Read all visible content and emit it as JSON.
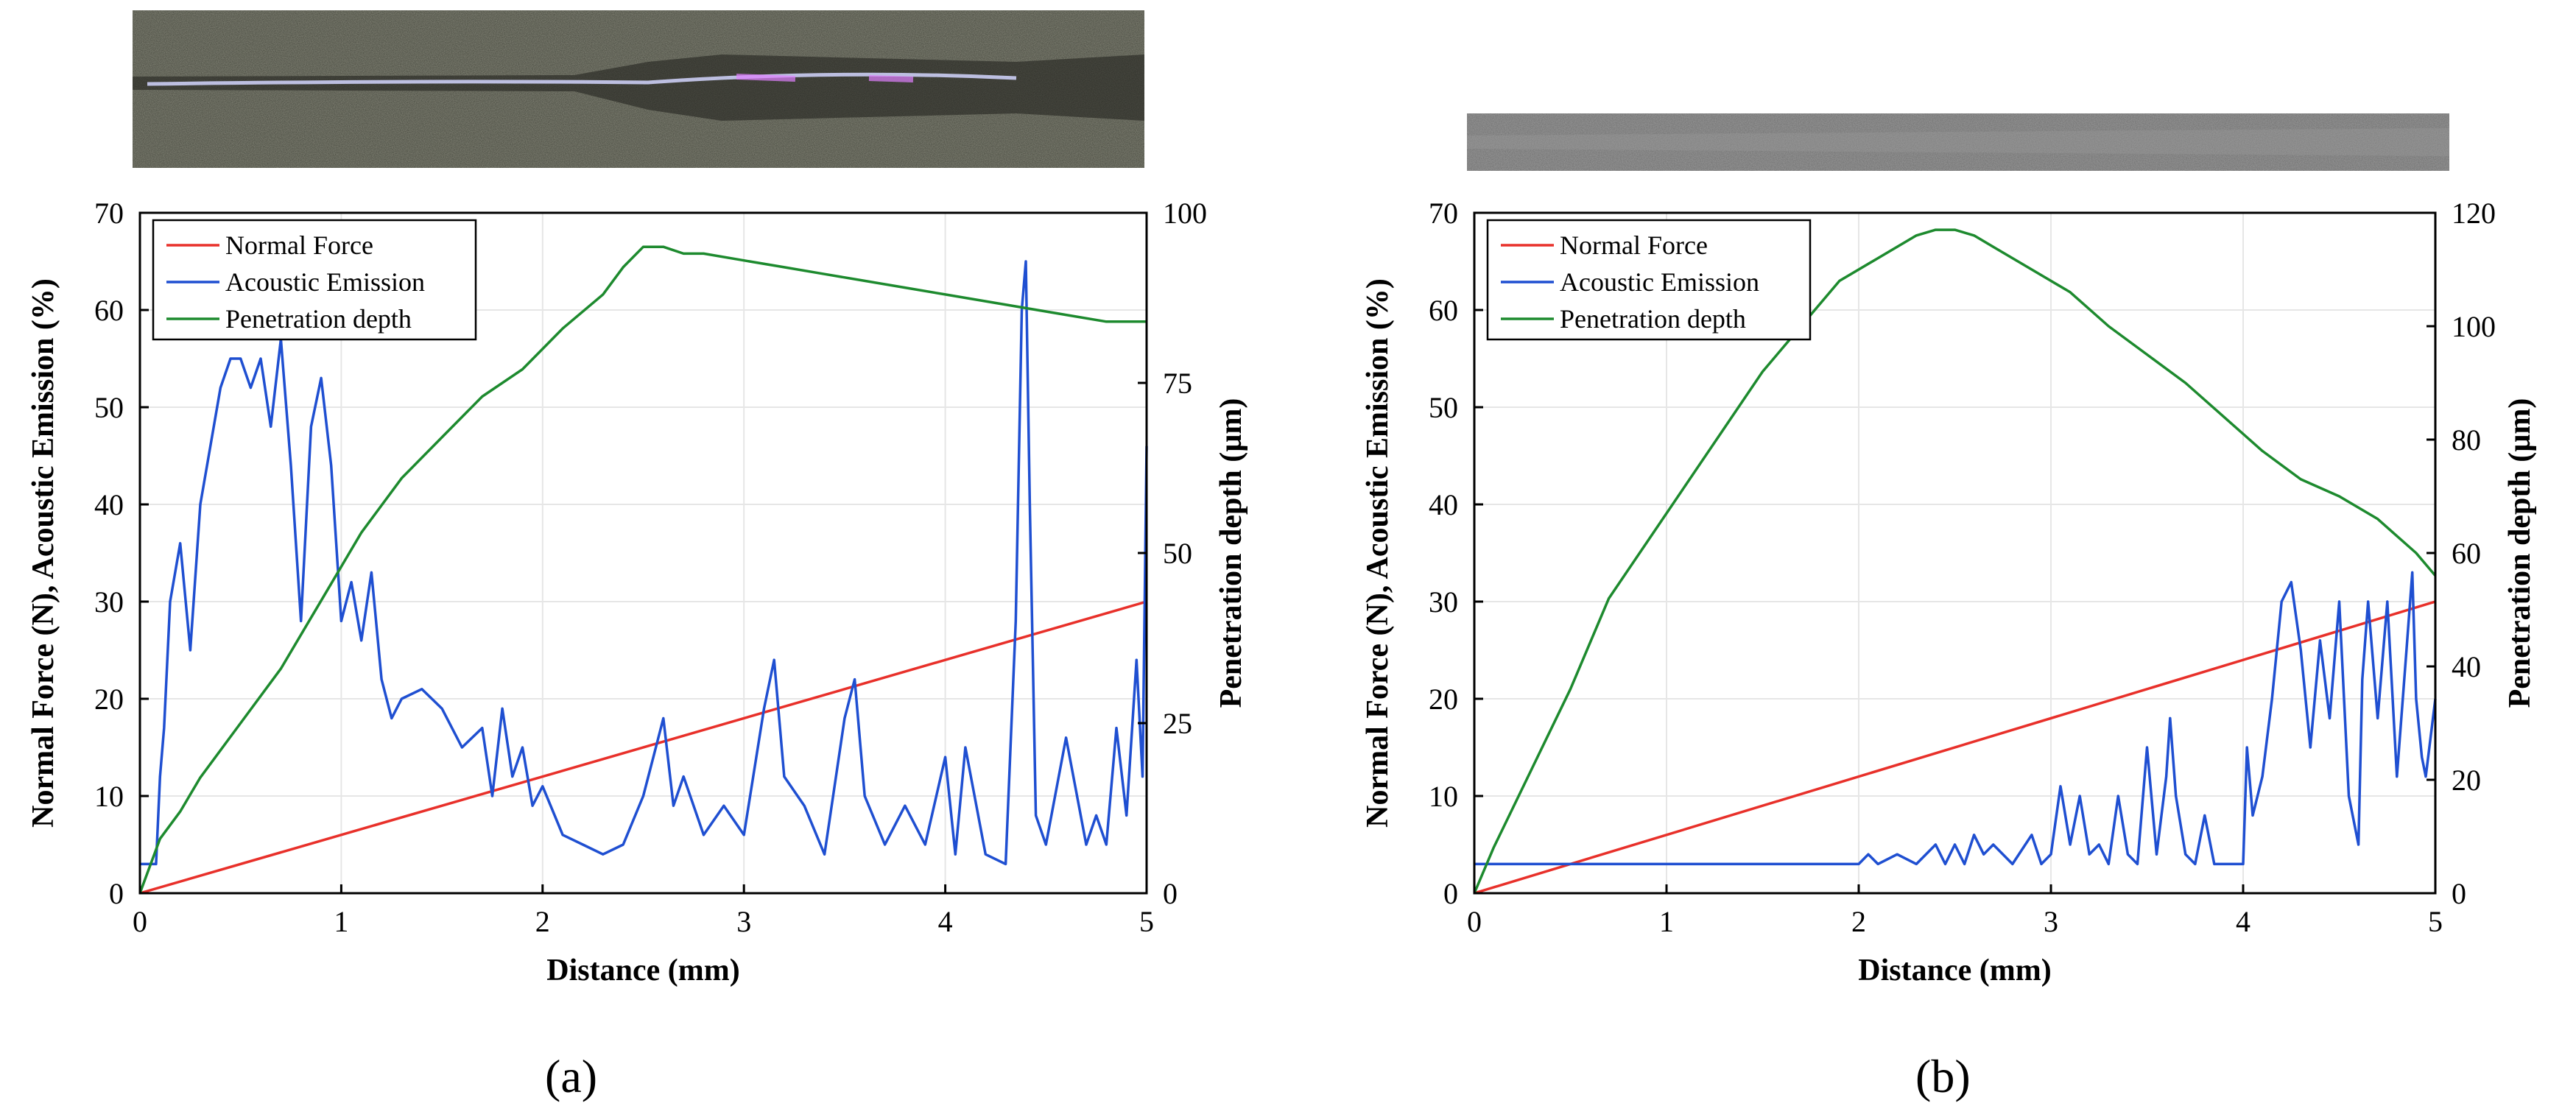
{
  "panels": [
    {
      "label": "(a)",
      "chart_data": {
        "type": "line",
        "xlabel": "Distance (mm)",
        "ylabel_left": "Normal Force (N), Acoustic Emission (%)",
        "ylabel_right": "Penetration depth (µm)",
        "xlim": [
          0,
          5
        ],
        "ylim_left": [
          0,
          70
        ],
        "ylim_right": [
          0,
          100
        ],
        "x_ticks": [
          "0",
          "1",
          "2",
          "3",
          "4",
          "5"
        ],
        "y_left_ticks": [
          "0",
          "10",
          "20",
          "30",
          "40",
          "50",
          "60",
          "70"
        ],
        "y_right_ticks": [
          "0",
          "25",
          "50",
          "75",
          "100"
        ],
        "grid": true,
        "legend_position": "top-left",
        "series": [
          {
            "name": "Normal Force",
            "axis": "left",
            "color": "#e8302a",
            "x": [
              0,
              5
            ],
            "y": [
              0,
              30
            ]
          },
          {
            "name": "Acoustic Emission",
            "axis": "left",
            "color": "#1f4fd1",
            "x": [
              0,
              0.08,
              0.1,
              0.12,
              0.15,
              0.2,
              0.25,
              0.3,
              0.35,
              0.4,
              0.45,
              0.5,
              0.55,
              0.6,
              0.65,
              0.7,
              0.75,
              0.8,
              0.85,
              0.9,
              0.95,
              1.0,
              1.05,
              1.1,
              1.15,
              1.2,
              1.25,
              1.3,
              1.4,
              1.5,
              1.6,
              1.7,
              1.75,
              1.8,
              1.85,
              1.9,
              1.95,
              2.0,
              2.1,
              2.2,
              2.3,
              2.4,
              2.5,
              2.55,
              2.6,
              2.65,
              2.7,
              2.8,
              2.9,
              3.0,
              3.1,
              3.15,
              3.2,
              3.3,
              3.4,
              3.5,
              3.55,
              3.6,
              3.7,
              3.8,
              3.9,
              4.0,
              4.05,
              4.1,
              4.2,
              4.3,
              4.35,
              4.38,
              4.4,
              4.42,
              4.45,
              4.5,
              4.6,
              4.7,
              4.75,
              4.8,
              4.85,
              4.9,
              4.95,
              4.98,
              5.0
            ],
            "y": [
              3,
              3,
              12,
              17,
              30,
              36,
              25,
              40,
              46,
              52,
              55,
              55,
              52,
              55,
              48,
              57,
              44,
              28,
              48,
              53,
              44,
              28,
              32,
              26,
              33,
              22,
              18,
              20,
              21,
              19,
              15,
              17,
              10,
              19,
              12,
              15,
              9,
              11,
              6,
              5,
              4,
              5,
              10,
              14,
              18,
              9,
              12,
              6,
              9,
              6,
              19,
              24,
              12,
              9,
              4,
              18,
              22,
              10,
              5,
              9,
              5,
              14,
              4,
              15,
              4,
              3,
              28,
              60,
              65,
              40,
              8,
              5,
              16,
              5,
              8,
              5,
              17,
              8,
              24,
              12,
              46
            ]
          },
          {
            "name": "Penetration depth",
            "axis": "right",
            "color": "#1d8a2e",
            "x": [
              0,
              0.1,
              0.2,
              0.3,
              0.5,
              0.7,
              0.9,
              1.1,
              1.3,
              1.5,
              1.7,
              1.9,
              2.1,
              2.3,
              2.4,
              2.5,
              2.6,
              2.7,
              2.8,
              3.0,
              3.2,
              3.4,
              3.6,
              3.8,
              4.0,
              4.2,
              4.4,
              4.6,
              4.8,
              5.0
            ],
            "y": [
              0,
              8,
              12,
              17,
              25,
              33,
              43,
              53,
              61,
              67,
              73,
              77,
              83,
              88,
              92,
              95,
              95,
              94,
              94,
              93,
              92,
              91,
              90,
              89,
              88,
              87,
              86,
              85,
              84,
              84
            ]
          }
        ]
      }
    },
    {
      "label": "(b)",
      "chart_data": {
        "type": "line",
        "xlabel": "Distance (mm)",
        "ylabel_left": "Normal Force (N), Acoustic Emission (%)",
        "ylabel_right": "Penetration depth (µm)",
        "xlim": [
          0,
          5
        ],
        "ylim_left": [
          0,
          70
        ],
        "ylim_right": [
          0,
          120
        ],
        "x_ticks": [
          "0",
          "1",
          "2",
          "3",
          "4",
          "5"
        ],
        "y_left_ticks": [
          "0",
          "10",
          "20",
          "30",
          "40",
          "50",
          "60",
          "70"
        ],
        "y_right_ticks": [
          "0",
          "20",
          "40",
          "60",
          "80",
          "100",
          "120"
        ],
        "grid": true,
        "legend_position": "top-left",
        "series": [
          {
            "name": "Normal Force",
            "axis": "left",
            "color": "#e8302a",
            "x": [
              0,
              5
            ],
            "y": [
              0,
              30
            ]
          },
          {
            "name": "Acoustic Emission",
            "axis": "left",
            "color": "#1f4fd1",
            "x": [
              0,
              0.05,
              1.0,
              2.0,
              2.05,
              2.1,
              2.2,
              2.3,
              2.4,
              2.45,
              2.5,
              2.55,
              2.6,
              2.65,
              2.7,
              2.8,
              2.9,
              2.95,
              3.0,
              3.05,
              3.1,
              3.15,
              3.2,
              3.25,
              3.3,
              3.35,
              3.4,
              3.45,
              3.5,
              3.55,
              3.6,
              3.62,
              3.65,
              3.7,
              3.75,
              3.8,
              3.85,
              3.9,
              3.95,
              4.0,
              4.02,
              4.05,
              4.1,
              4.15,
              4.2,
              4.25,
              4.3,
              4.35,
              4.4,
              4.45,
              4.5,
              4.55,
              4.6,
              4.62,
              4.65,
              4.7,
              4.75,
              4.8,
              4.85,
              4.88,
              4.9,
              4.93,
              4.95,
              5.0
            ],
            "y": [
              3,
              3,
              3,
              3,
              4,
              3,
              4,
              3,
              5,
              3,
              5,
              3,
              6,
              4,
              5,
              3,
              6,
              3,
              4,
              11,
              5,
              10,
              4,
              5,
              3,
              10,
              4,
              3,
              15,
              4,
              12,
              18,
              10,
              4,
              3,
              8,
              3,
              3,
              3,
              3,
              15,
              8,
              12,
              20,
              30,
              32,
              25,
              15,
              26,
              18,
              30,
              10,
              5,
              22,
              30,
              18,
              30,
              12,
              25,
              33,
              20,
              14,
              12,
              20
            ]
          },
          {
            "name": "Penetration depth",
            "axis": "right",
            "color": "#1d8a2e",
            "x": [
              0,
              0.1,
              0.3,
              0.5,
              0.7,
              0.9,
              1.1,
              1.3,
              1.5,
              1.7,
              1.9,
              2.1,
              2.3,
              2.4,
              2.5,
              2.6,
              2.7,
              2.9,
              3.1,
              3.3,
              3.5,
              3.7,
              3.9,
              4.1,
              4.3,
              4.5,
              4.7,
              4.8,
              4.9,
              5.0
            ],
            "y": [
              0,
              8,
              22,
              36,
              52,
              62,
              72,
              82,
              92,
              100,
              108,
              112,
              116,
              117,
              117,
              116,
              114,
              110,
              106,
              100,
              95,
              90,
              84,
              78,
              73,
              70,
              66,
              63,
              60,
              56
            ]
          }
        ]
      }
    }
  ]
}
